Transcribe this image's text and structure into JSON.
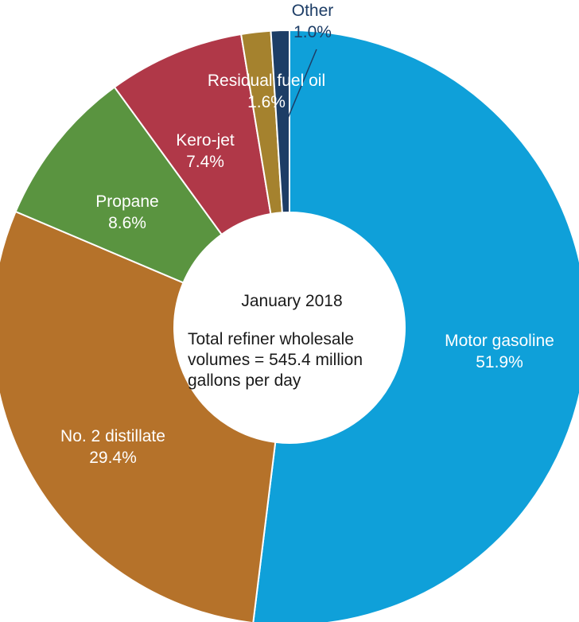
{
  "chart_data": {
    "type": "pie",
    "donut": true,
    "categories": [
      "Motor gasoline",
      "No. 2 distillate",
      "Propane",
      "Kero-jet",
      "Residual fuel oil",
      "Other"
    ],
    "values": [
      51.9,
      29.4,
      8.6,
      7.4,
      1.6,
      1.0
    ],
    "value_labels": [
      "51.9%",
      "29.4%",
      "8.6%",
      "7.4%",
      "1.6%",
      "1.0%"
    ],
    "colors": [
      "#0fa0d9",
      "#b5722a",
      "#5a9440",
      "#b03848",
      "#a5822e",
      "#1d3d66"
    ],
    "label_colors": [
      "#ffffff",
      "#ffffff",
      "#ffffff",
      "#ffffff",
      "#ffffff",
      "#1d3d66"
    ],
    "center_title": "January 2018",
    "center_subtitle": "Total refiner wholesale volumes = 545.4 million gallons per day",
    "legend": "none"
  }
}
